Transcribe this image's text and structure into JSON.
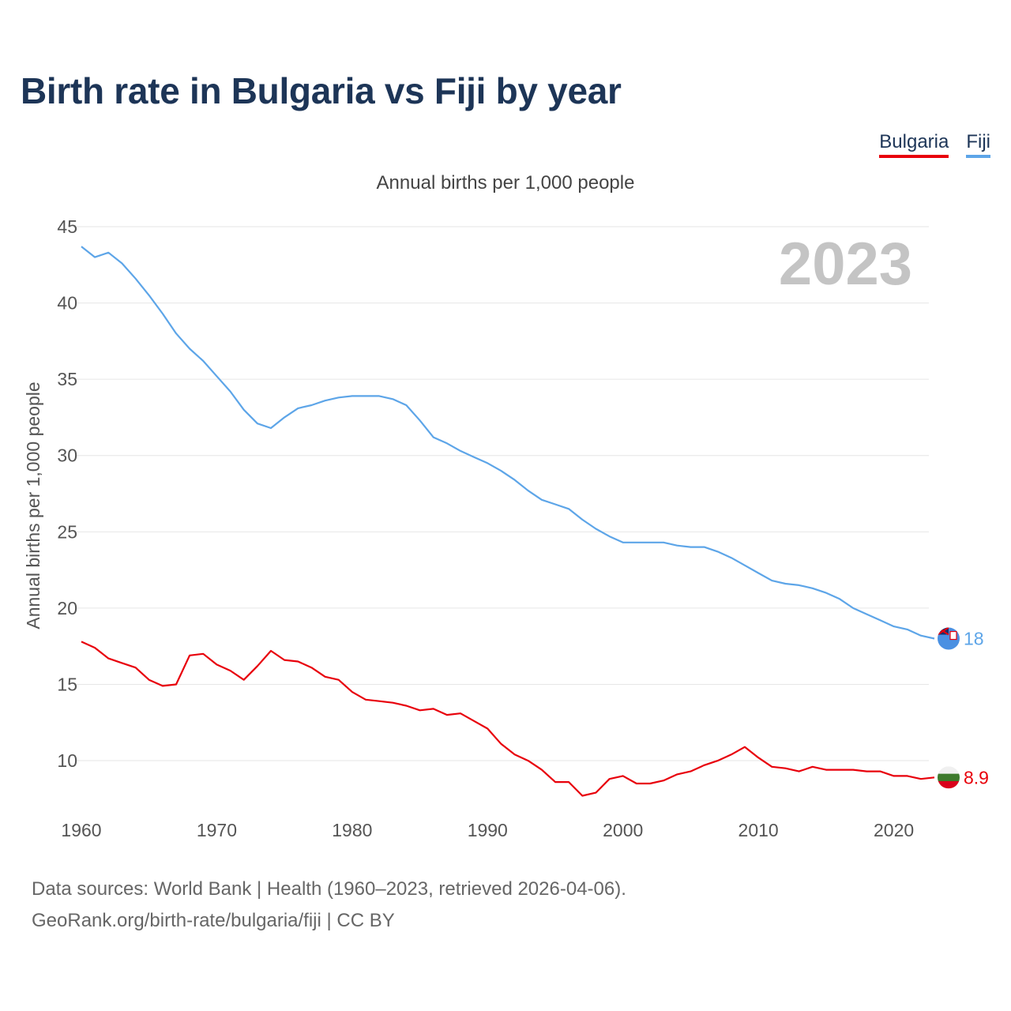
{
  "header": {
    "title": "Birth rate in Bulgaria vs Fiji by year",
    "subtitle": "Annual births per 1,000 people"
  },
  "legend": [
    {
      "label": "Bulgaria",
      "color": "#e8000b"
    },
    {
      "label": "Fiji",
      "color": "#5da5e8"
    }
  ],
  "footer": {
    "source_line": "Data sources: World Bank | Health (1960–2023, retrieved 2026-04-06).",
    "credit_line": "GeoRank.org/birth-rate/bulgaria/fiji | CC BY"
  },
  "chart_data": {
    "type": "line",
    "title": "Birth rate in Bulgaria vs Fiji by year",
    "subtitle": "Annual births per 1,000 people",
    "xlabel": "",
    "ylabel": "Annual births per 1,000 people",
    "year_watermark": "2023",
    "xlim": [
      1960,
      2023
    ],
    "ylim": [
      7,
      45
    ],
    "y_ticks": [
      10,
      15,
      20,
      25,
      30,
      35,
      40,
      45
    ],
    "x_ticks": [
      1960,
      1970,
      1980,
      1990,
      2000,
      2010,
      2020
    ],
    "grid": true,
    "legend_position": "top-right",
    "x": [
      1960,
      1961,
      1962,
      1963,
      1964,
      1965,
      1966,
      1967,
      1968,
      1969,
      1970,
      1971,
      1972,
      1973,
      1974,
      1975,
      1976,
      1977,
      1978,
      1979,
      1980,
      1981,
      1982,
      1983,
      1984,
      1985,
      1986,
      1987,
      1988,
      1989,
      1990,
      1991,
      1992,
      1993,
      1994,
      1995,
      1996,
      1997,
      1998,
      1999,
      2000,
      2001,
      2002,
      2003,
      2004,
      2005,
      2006,
      2007,
      2008,
      2009,
      2010,
      2011,
      2012,
      2013,
      2014,
      2015,
      2016,
      2017,
      2018,
      2019,
      2020,
      2021,
      2022,
      2023
    ],
    "series": [
      {
        "name": "Bulgaria",
        "color": "#e8000b",
        "end_label": "8.9",
        "flag": "bulgaria-flag",
        "values": [
          17.8,
          17.4,
          16.7,
          16.4,
          16.1,
          15.3,
          14.9,
          15.0,
          16.9,
          17.0,
          16.3,
          15.9,
          15.3,
          16.2,
          17.2,
          16.6,
          16.5,
          16.1,
          15.5,
          15.3,
          14.5,
          14.0,
          13.9,
          13.8,
          13.6,
          13.3,
          13.4,
          13.0,
          13.1,
          12.6,
          12.1,
          11.1,
          10.4,
          10.0,
          9.4,
          8.6,
          8.6,
          7.7,
          7.9,
          8.8,
          9.0,
          8.5,
          8.5,
          8.7,
          9.1,
          9.3,
          9.7,
          10.0,
          10.4,
          10.9,
          10.2,
          9.6,
          9.5,
          9.3,
          9.6,
          9.4,
          9.4,
          9.4,
          9.3,
          9.3,
          9.0,
          9.0,
          8.8,
          8.9
        ]
      },
      {
        "name": "Fiji",
        "color": "#5da5e8",
        "end_label": "18",
        "flag": "fiji-flag",
        "values": [
          43.7,
          43.0,
          43.3,
          42.6,
          41.6,
          40.5,
          39.3,
          38.0,
          37.0,
          36.2,
          35.2,
          34.2,
          33.0,
          32.1,
          31.8,
          32.5,
          33.1,
          33.3,
          33.6,
          33.8,
          33.9,
          33.9,
          33.9,
          33.7,
          33.3,
          32.3,
          31.2,
          30.8,
          30.3,
          29.9,
          29.5,
          29.0,
          28.4,
          27.7,
          27.1,
          26.8,
          26.5,
          25.8,
          25.2,
          24.7,
          24.3,
          24.3,
          24.3,
          24.3,
          24.1,
          24.0,
          24.0,
          23.7,
          23.3,
          22.8,
          22.3,
          21.8,
          21.6,
          21.5,
          21.3,
          21.0,
          20.6,
          20.0,
          19.6,
          19.2,
          18.8,
          18.6,
          18.2,
          18.0
        ]
      }
    ]
  }
}
